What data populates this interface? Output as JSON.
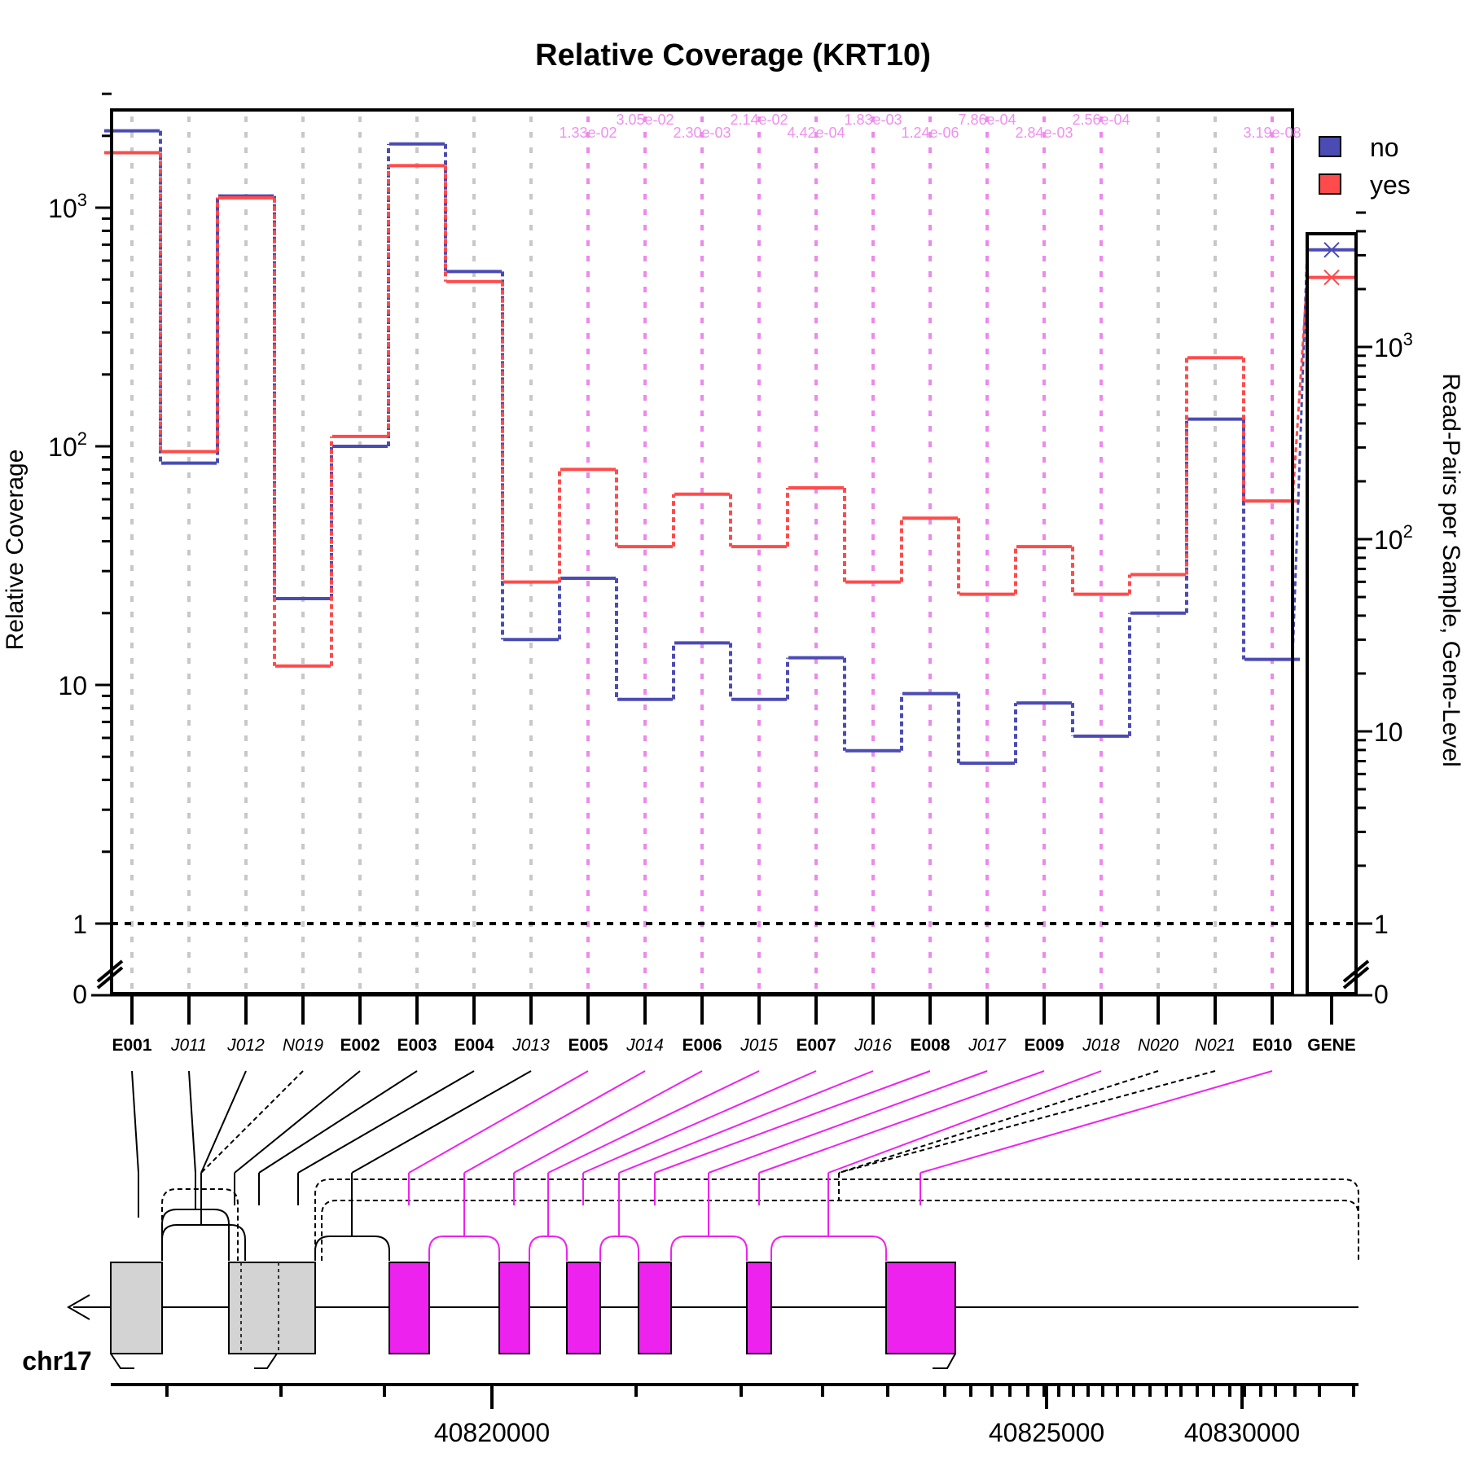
{
  "chart_data": {
    "type": "line",
    "title": "Relative Coverage (KRT10)",
    "ylabel": "Relative Coverage",
    "ylabel_right": "Read-Pairs per Sample, Gene-Level",
    "y_scale": "log",
    "ylim": [
      1,
      3000
    ],
    "y_ticks": [
      {
        "value": 1,
        "label": "1"
      },
      {
        "value": 10,
        "label": "10"
      },
      {
        "value": 100,
        "label": "10",
        "exp": "2"
      },
      {
        "value": 1000,
        "label": "10",
        "exp": "3"
      }
    ],
    "y_zero_label": "0",
    "y_ticks_right": [
      {
        "value": 1,
        "label": "1"
      },
      {
        "value": 10,
        "label": "10"
      },
      {
        "value": 100,
        "label": "10",
        "exp": "2"
      },
      {
        "value": 1000,
        "label": "10",
        "exp": "3"
      }
    ],
    "features": [
      {
        "id": "E001",
        "kind": "exon"
      },
      {
        "id": "J011",
        "kind": "junction"
      },
      {
        "id": "J012",
        "kind": "junction"
      },
      {
        "id": "N019",
        "kind": "novel"
      },
      {
        "id": "E002",
        "kind": "exon"
      },
      {
        "id": "E003",
        "kind": "exon"
      },
      {
        "id": "E004",
        "kind": "exon"
      },
      {
        "id": "J013",
        "kind": "junction"
      },
      {
        "id": "E005",
        "kind": "exon"
      },
      {
        "id": "J014",
        "kind": "junction"
      },
      {
        "id": "E006",
        "kind": "exon"
      },
      {
        "id": "J015",
        "kind": "junction"
      },
      {
        "id": "E007",
        "kind": "exon"
      },
      {
        "id": "J016",
        "kind": "junction"
      },
      {
        "id": "E008",
        "kind": "exon"
      },
      {
        "id": "J017",
        "kind": "junction"
      },
      {
        "id": "E009",
        "kind": "exon"
      },
      {
        "id": "J018",
        "kind": "junction"
      },
      {
        "id": "N020",
        "kind": "novel"
      },
      {
        "id": "N021",
        "kind": "novel"
      },
      {
        "id": "E010",
        "kind": "exon"
      }
    ],
    "series": [
      {
        "name": "no",
        "color": "#4b4bb4",
        "values": [
          2100,
          85,
          1120,
          23,
          100,
          1850,
          540,
          15.5,
          28,
          8.7,
          15,
          8.7,
          13,
          5.3,
          9.2,
          4.7,
          8.4,
          6.1,
          20,
          130,
          12.8
        ]
      },
      {
        "name": "yes",
        "color": "#ff4b4b",
        "values": [
          1700,
          95,
          1100,
          12,
          110,
          1500,
          490,
          27,
          80,
          38,
          63,
          38,
          67,
          27,
          50,
          24,
          38,
          24,
          29,
          235,
          59
        ]
      }
    ],
    "significant": [
      {
        "feature": "E005",
        "pvalue": "1.33e-02"
      },
      {
        "feature": "J014",
        "pvalue": "3.05e-02"
      },
      {
        "feature": "E006",
        "pvalue": "2.30e-03"
      },
      {
        "feature": "J015",
        "pvalue": "2.14e-02"
      },
      {
        "feature": "E007",
        "pvalue": "4.42e-04"
      },
      {
        "feature": "J016",
        "pvalue": "1.83e-03"
      },
      {
        "feature": "E008",
        "pvalue": "1.24e-06"
      },
      {
        "feature": "J017",
        "pvalue": "7.86e-04"
      },
      {
        "feature": "E009",
        "pvalue": "2.84e-03"
      },
      {
        "feature": "J018",
        "pvalue": "2.56e-04"
      },
      {
        "feature": "E010",
        "pvalue": "3.19e-08"
      }
    ],
    "gene_level": {
      "label": "GENE",
      "values": {
        "no": 3200,
        "yes": 2300
      }
    },
    "legend": [
      {
        "label": "no",
        "color": "#4b4bb4"
      },
      {
        "label": "yes",
        "color": "#ff4b4b"
      }
    ],
    "legend_position": "top-right",
    "colors": {
      "significant": "#ee22ee",
      "exon_box_sig": "#ee22ee",
      "exon_box": "#d3d3d3",
      "grid": "#c8c8c8"
    },
    "genome": {
      "chromosome": "chr17",
      "strand": "-",
      "tick_labels": [
        "40820000",
        "40825000",
        "40830000"
      ]
    }
  }
}
